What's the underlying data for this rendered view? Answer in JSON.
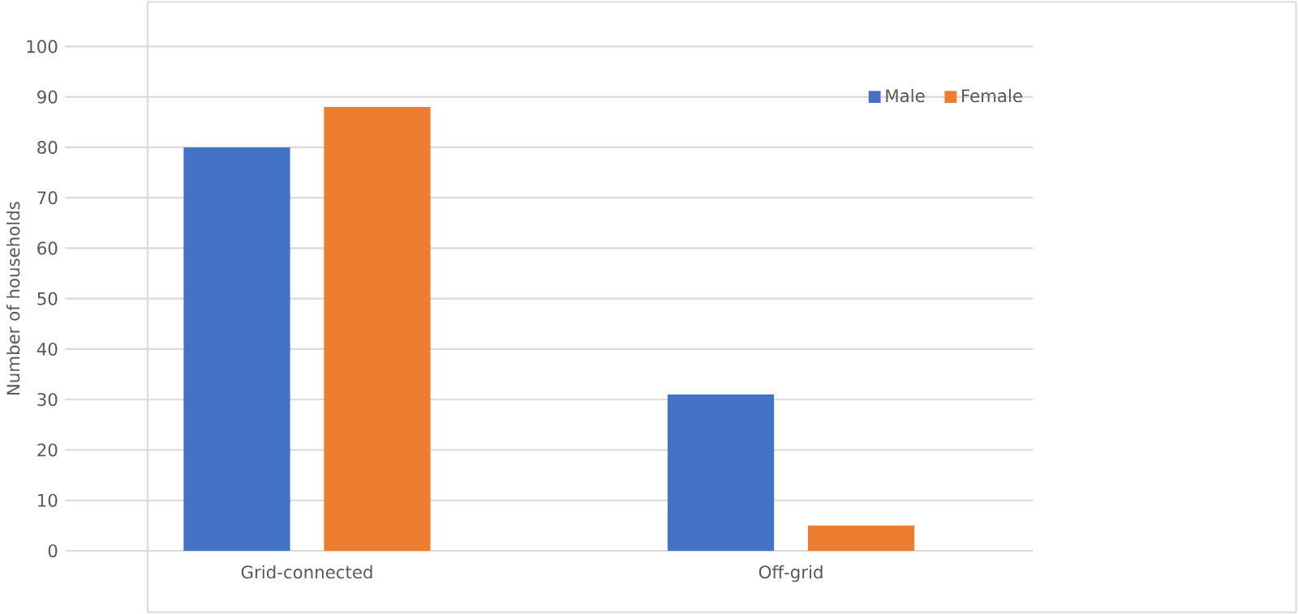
{
  "chart_data": {
    "type": "bar",
    "ylabel": "Number of households",
    "categories": [
      "Grid-connected",
      "Off-grid"
    ],
    "series": [
      {
        "name": "Male",
        "color": "#4472c4",
        "values": [
          80,
          31
        ]
      },
      {
        "name": "Female",
        "color": "#ed7d31",
        "values": [
          88,
          5
        ]
      }
    ],
    "ylim": [
      0,
      100
    ],
    "yticks": [
      0,
      10,
      20,
      30,
      40,
      50,
      60,
      70,
      80,
      90,
      100
    ],
    "grid": "y",
    "legend": "top right"
  }
}
